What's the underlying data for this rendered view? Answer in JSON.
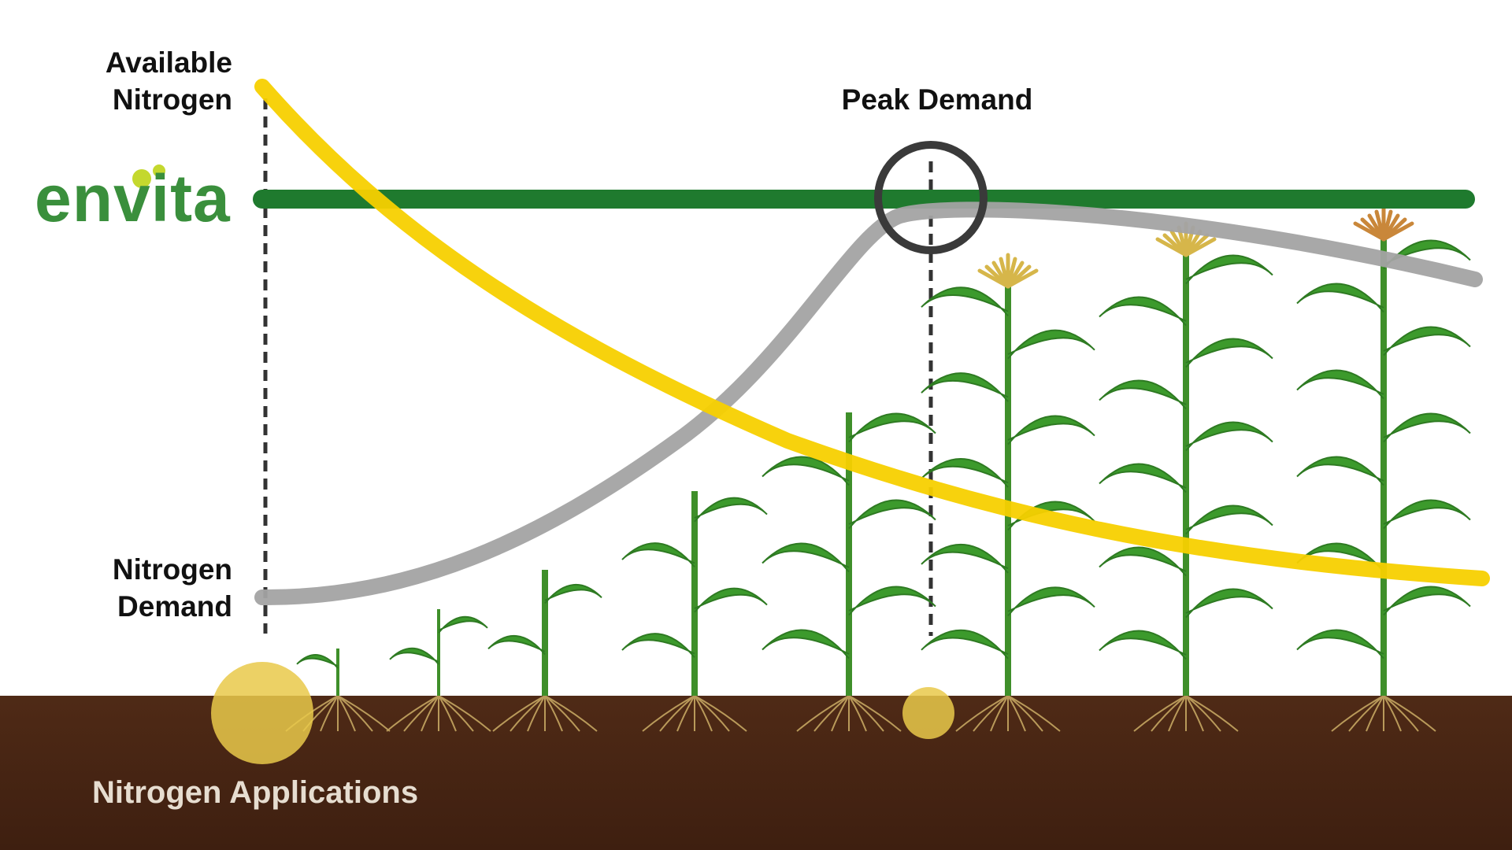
{
  "labels": {
    "available_nitrogen_line1": "Available",
    "available_nitrogen_line2": "Nitrogen",
    "nitrogen_demand_line1": "Nitrogen",
    "nitrogen_demand_line2": "Demand",
    "peak_demand": "Peak Demand",
    "nitrogen_applications": "Nitrogen Applications"
  },
  "logo": {
    "text": "envita"
  },
  "colors": {
    "available_nitrogen_curve": "#f7d000",
    "nitrogen_demand_curve": "#a3a3a3",
    "envita_line": "#1f7a2e",
    "peak_circle": "#3a3a3a",
    "soil": "#4a2614",
    "application_marker": "#e9c94a",
    "logo_green": "#3a8f3c",
    "logo_lime": "#c4d82e"
  },
  "growth_stages": 8
}
